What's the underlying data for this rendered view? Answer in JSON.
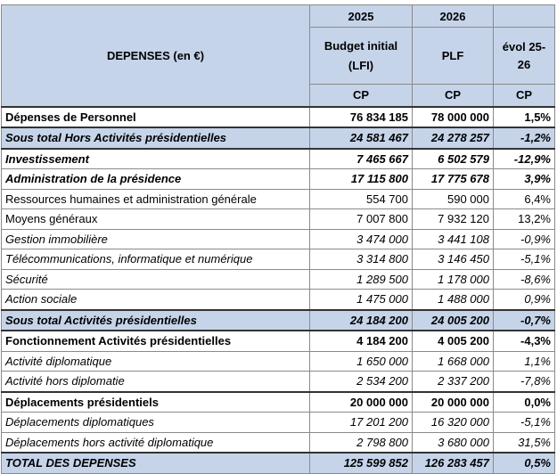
{
  "table": {
    "header": {
      "title": "DEPENSES (en €)",
      "years": [
        "2025",
        "2026"
      ],
      "columns": [
        "Budget initial (LFI)",
        "PLF",
        "évol 25-26"
      ],
      "units": [
        "CP",
        "CP",
        "CP"
      ]
    },
    "rows": [
      {
        "label": "Dépenses de Personnel",
        "values": [
          "76 834 185",
          "78 000 000",
          "1,5%"
        ]
      },
      {
        "label": "Sous total Hors Activités présidentielles",
        "values": [
          "24 581 467",
          "24 278 257",
          "-1,2%"
        ]
      },
      {
        "label": "Investissement",
        "values": [
          "7 465 667",
          "6 502 579",
          "-12,9%"
        ]
      },
      {
        "label": "Administration de la présidence",
        "values": [
          "17 115 800",
          "17 775 678",
          "3,9%"
        ]
      },
      {
        "label": "Ressources humaines et administration générale",
        "values": [
          "554 700",
          "590 000",
          "6,4%"
        ]
      },
      {
        "label": "Moyens généraux",
        "values": [
          "7 007 800",
          "7 932 120",
          "13,2%"
        ]
      },
      {
        "label": "Gestion immobilière",
        "values": [
          "3 474 000",
          "3 441 108",
          "-0,9%"
        ]
      },
      {
        "label": "Télécommunications, informatique et numérique",
        "values": [
          "3 314 800",
          "3 146 450",
          "-5,1%"
        ]
      },
      {
        "label": "Sécurité",
        "values": [
          "1 289 500",
          "1 178 000",
          "-8,6%"
        ]
      },
      {
        "label": "Action sociale",
        "values": [
          "1 475 000",
          "1 488 000",
          "0,9%"
        ]
      },
      {
        "label": "Sous total Activités présidentielles",
        "values": [
          "24 184 200",
          "24 005 200",
          "-0,7%"
        ]
      },
      {
        "label": "Fonctionnement Activités présidentielles",
        "values": [
          "4 184 200",
          "4 005 200",
          "-4,3%"
        ]
      },
      {
        "label": "Activité diplomatique",
        "values": [
          "1 650 000",
          "1 668 000",
          "1,1%"
        ]
      },
      {
        "label": "Activité hors diplomatie",
        "values": [
          "2 534 200",
          "2 337 200",
          "-7,8%"
        ]
      },
      {
        "label": "Déplacements présidentiels",
        "values": [
          "20 000 000",
          "20 000 000",
          "0,0%"
        ]
      },
      {
        "label": "Déplacements diplomatiques",
        "values": [
          "17 201 200",
          "16 320 000",
          "-5,1%"
        ]
      },
      {
        "label": "Déplacements hors activité diplomatique",
        "values": [
          "2 798 800",
          "3 680 000",
          "31,5%"
        ]
      },
      {
        "label": "TOTAL DES DEPENSES",
        "values": [
          "125 599 852",
          "126 283 457",
          "0,5%"
        ]
      }
    ]
  }
}
